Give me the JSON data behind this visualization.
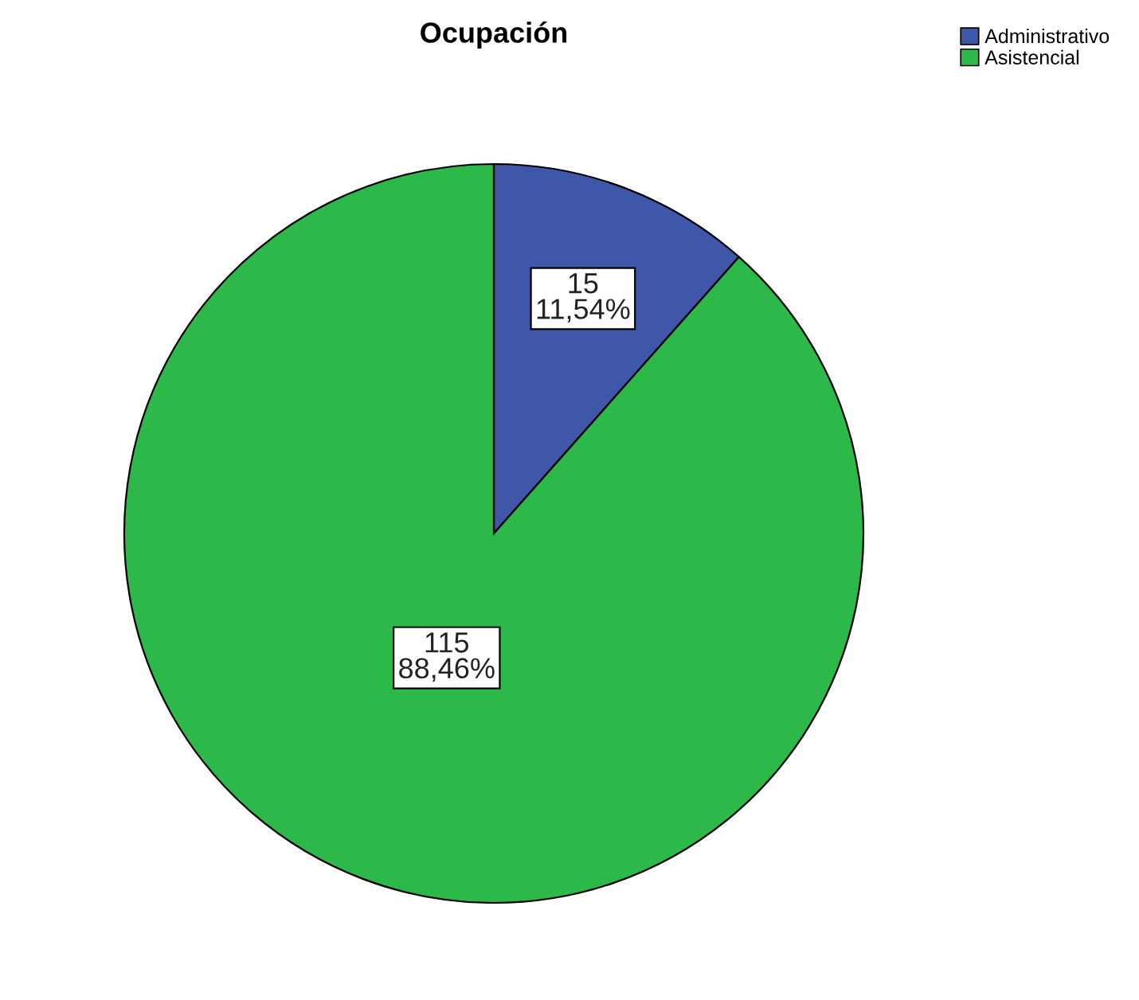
{
  "chart_data": {
    "type": "pie",
    "title": "Ocupación",
    "categories": [
      "Administrativo",
      "Asistencial"
    ],
    "values": [
      15,
      115
    ],
    "colors": [
      "#3f57a8",
      "#2db84a"
    ],
    "value_labels": [
      "15\n11,54%",
      "115\n88,46%"
    ],
    "legend": "top right"
  }
}
